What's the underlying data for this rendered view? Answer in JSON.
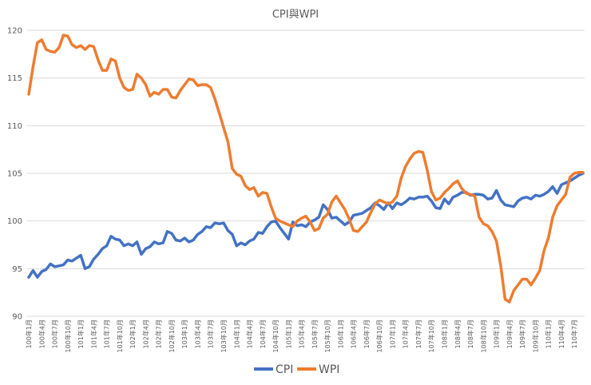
{
  "chart_data": {
    "type": "line",
    "title": "CPI與WPI",
    "ylim": [
      90,
      120
    ],
    "yticks": [
      90,
      95,
      100,
      105,
      110,
      115,
      120
    ],
    "grid": true,
    "legend_position": "bottom",
    "x": [
      "100年1月",
      "100年2月",
      "100年3月",
      "100年4月",
      "100年5月",
      "100年6月",
      "100年7月",
      "100年8月",
      "100年9月",
      "100年10月",
      "100年11月",
      "100年12月",
      "101年1月",
      "101年2月",
      "101年3月",
      "101年4月",
      "101年5月",
      "101年6月",
      "101年7月",
      "101年8月",
      "101年9月",
      "101年10月",
      "101年11月",
      "101年12月",
      "102年1月",
      "102年2月",
      "102年3月",
      "102年4月",
      "102年5月",
      "102年6月",
      "102年7月",
      "102年8月",
      "102年9月",
      "102年10月",
      "102年11月",
      "102年12月",
      "103年1月",
      "103年2月",
      "103年3月",
      "103年4月",
      "103年5月",
      "103年6月",
      "103年7月",
      "103年8月",
      "103年9月",
      "103年10月",
      "103年11月",
      "103年12月",
      "104年1月",
      "104年2月",
      "104年3月",
      "104年4月",
      "104年5月",
      "104年6月",
      "104年7月",
      "104年8月",
      "104年9月",
      "104年10月",
      "104年11月",
      "104年12月",
      "105年1月",
      "105年2月",
      "105年3月",
      "105年4月",
      "105年5月",
      "105年6月",
      "105年7月",
      "105年8月",
      "105年9月",
      "105年10月",
      "105年11月",
      "105年12月",
      "106年1月",
      "106年2月",
      "106年3月",
      "106年4月",
      "106年5月",
      "106年6月",
      "106年7月",
      "106年8月",
      "106年9月",
      "106年10月",
      "106年11月",
      "106年12月",
      "107年1月",
      "107年2月",
      "107年3月",
      "107年4月",
      "107年5月",
      "107年6月",
      "107年7月",
      "107年8月",
      "107年9月",
      "107年10月",
      "107年11月",
      "107年12月",
      "108年1月",
      "108年2月",
      "108年3月",
      "108年4月",
      "108年5月",
      "108年6月",
      "108年7月",
      "108年8月",
      "108年9月",
      "108年10月",
      "108年11月",
      "108年12月",
      "109年1月",
      "109年2月",
      "109年3月",
      "109年4月",
      "109年5月",
      "109年6月",
      "109年7月",
      "109年8月",
      "109年9月",
      "109年10月",
      "109年11月",
      "109年12月",
      "110年1月",
      "110年2月",
      "110年3月",
      "110年4月",
      "110年5月",
      "110年6月",
      "110年7月",
      "110年8月",
      "110年9月"
    ],
    "xtick_labels": [
      "100年1月",
      "100年4月",
      "100年7月",
      "100年10月",
      "101年1月",
      "101年4月",
      "101年7月",
      "101年10月",
      "102年1月",
      "102年4月",
      "102年7月",
      "102年10月",
      "103年1月",
      "103年4月",
      "103年7月",
      "103年10月",
      "104年1月",
      "104年4月",
      "104年7月",
      "104年10月",
      "105年1月",
      "105年4月",
      "105年7月",
      "105年10月",
      "106年1月",
      "106年4月",
      "106年7月",
      "106年10月",
      "107年1月",
      "107年4月",
      "107年7月",
      "107年10月",
      "108年1月",
      "108年4月",
      "108年7月",
      "108年10月",
      "109年1月",
      "109年4月",
      "109年7月",
      "109年10月",
      "110年1月",
      "110年4月",
      "110年7月"
    ],
    "series": [
      {
        "name": "CPI",
        "color": "#4472C4",
        "values": [
          94.1,
          94.8,
          94.1,
          94.7,
          94.9,
          95.5,
          95.2,
          95.3,
          95.4,
          95.9,
          95.8,
          96.1,
          96.4,
          95.0,
          95.2,
          96.0,
          96.5,
          97.1,
          97.4,
          98.4,
          98.1,
          98.0,
          97.4,
          97.6,
          97.4,
          97.8,
          96.5,
          97.1,
          97.3,
          97.8,
          97.6,
          97.7,
          98.9,
          98.7,
          98.0,
          97.9,
          98.2,
          97.8,
          98.0,
          98.6,
          98.9,
          99.4,
          99.3,
          99.8,
          99.7,
          99.8,
          99.0,
          98.6,
          97.4,
          97.7,
          97.5,
          97.9,
          98.1,
          98.8,
          98.7,
          99.4,
          99.9,
          100.0,
          99.3,
          98.7,
          98.1,
          99.9,
          99.5,
          99.6,
          99.4,
          99.9,
          100.1,
          100.4,
          101.7,
          101.2,
          100.3,
          100.4,
          100.0,
          99.6,
          99.9,
          100.6,
          100.7,
          100.8,
          101.1,
          101.4,
          101.9,
          101.6,
          101.2,
          101.9,
          101.3,
          101.9,
          101.7,
          102.0,
          102.4,
          102.3,
          102.5,
          102.5,
          102.6,
          102.1,
          101.4,
          101.3,
          102.3,
          101.8,
          102.5,
          102.7,
          103.0,
          103.0,
          102.7,
          102.8,
          102.8,
          102.7,
          102.3,
          102.4,
          103.2,
          102.2,
          101.7,
          101.6,
          101.5,
          102.1,
          102.4,
          102.5,
          102.3,
          102.7,
          102.6,
          102.8,
          103.1,
          103.6,
          102.9,
          103.8,
          104.0,
          104.2,
          104.5,
          104.8,
          105.0
        ]
      },
      {
        "name": "WPI",
        "color": "#ED7D31",
        "values": [
          113.3,
          116.2,
          118.7,
          119.0,
          118.0,
          117.8,
          117.7,
          118.2,
          119.5,
          119.4,
          118.5,
          118.2,
          118.4,
          118.0,
          118.4,
          118.3,
          116.9,
          115.8,
          115.8,
          117.0,
          116.8,
          115.0,
          114.0,
          113.7,
          113.8,
          115.4,
          115.0,
          114.3,
          113.1,
          113.5,
          113.3,
          113.8,
          113.8,
          113.0,
          112.9,
          113.7,
          114.3,
          114.9,
          114.8,
          114.2,
          114.3,
          114.3,
          114.0,
          112.8,
          111.3,
          109.8,
          108.3,
          105.5,
          104.9,
          104.7,
          103.7,
          103.3,
          103.5,
          102.6,
          103.0,
          102.9,
          101.5,
          100.3,
          100.0,
          99.8,
          99.6,
          99.4,
          100.0,
          100.3,
          100.5,
          99.9,
          99.0,
          99.2,
          100.3,
          100.7,
          102.0,
          102.6,
          101.9,
          101.2,
          100.2,
          99.0,
          98.9,
          99.4,
          99.9,
          100.9,
          101.8,
          102.2,
          102.0,
          101.8,
          102.0,
          102.6,
          104.5,
          105.7,
          106.5,
          107.1,
          107.3,
          107.2,
          105.4,
          103.1,
          102.2,
          102.4,
          103.0,
          103.4,
          103.9,
          104.2,
          103.4,
          102.9,
          102.8,
          102.6,
          100.4,
          99.7,
          99.5,
          98.9,
          97.9,
          95.3,
          91.8,
          91.5,
          92.7,
          93.3,
          93.9,
          93.9,
          93.3,
          94.0,
          94.8,
          96.9,
          98.2,
          100.4,
          101.6,
          102.2,
          102.8,
          104.6,
          105.0,
          105.1,
          105.1
        ]
      }
    ]
  }
}
